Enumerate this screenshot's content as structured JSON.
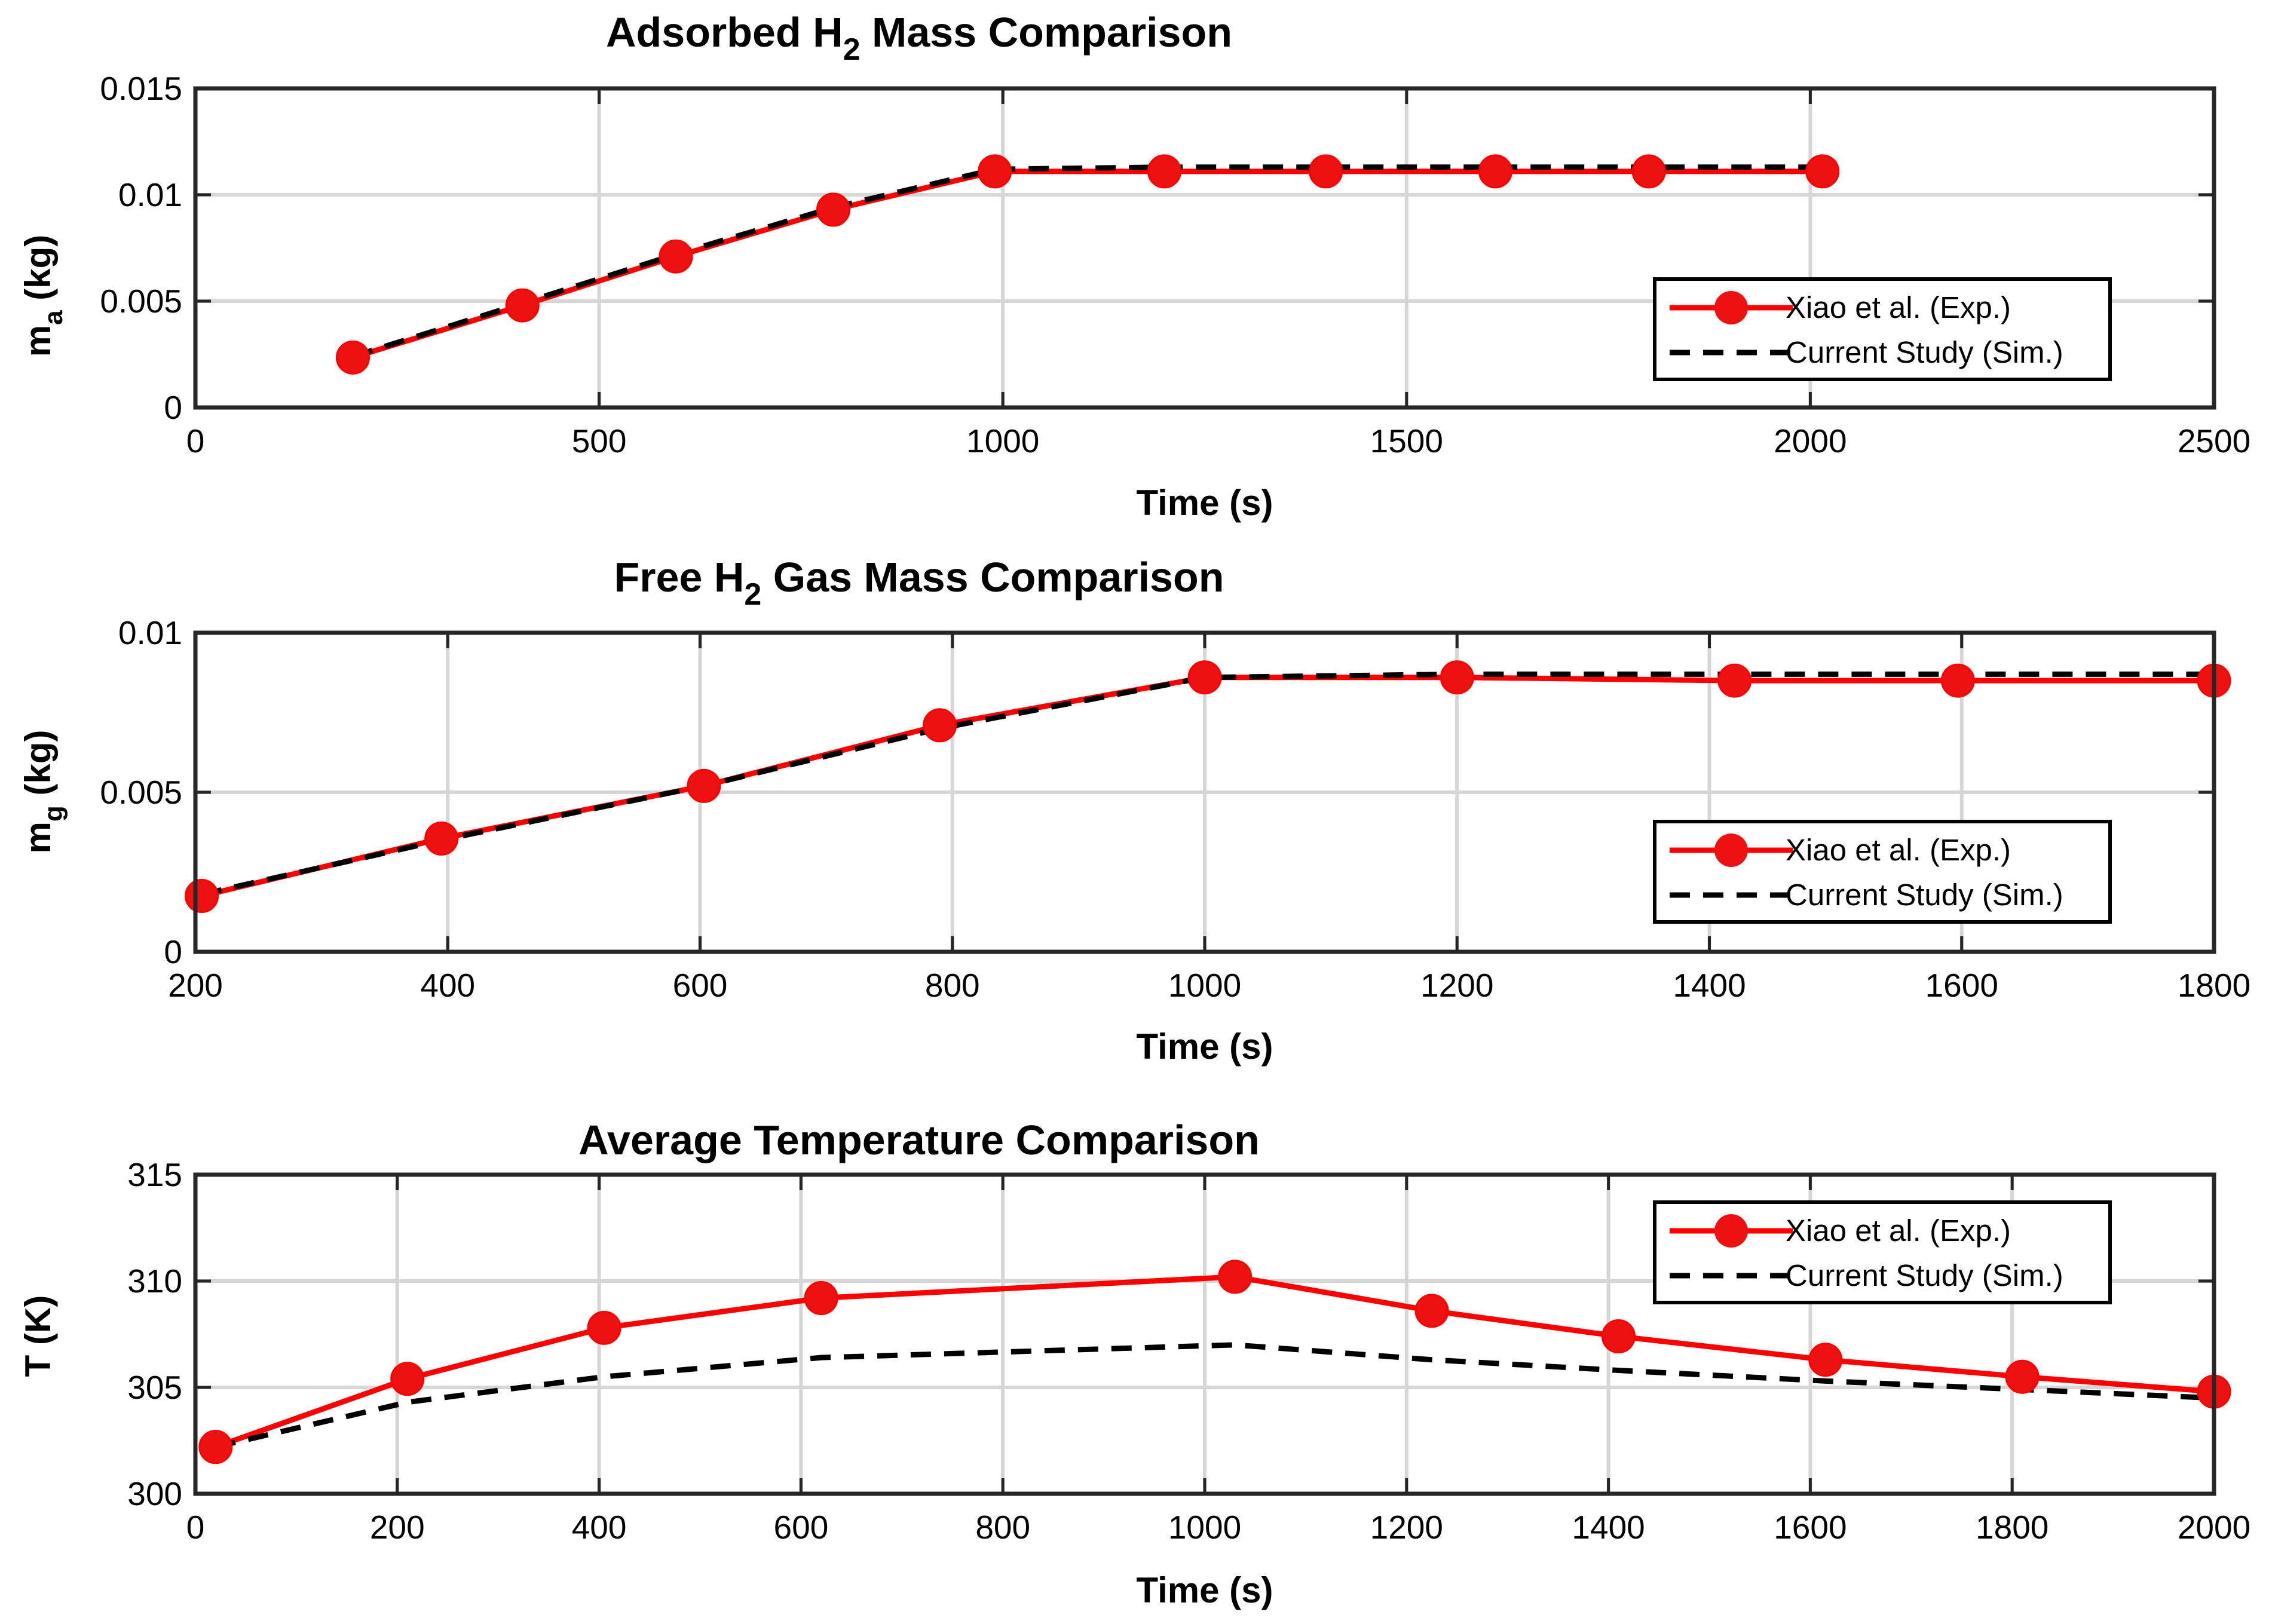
{
  "legend": {
    "exp_label": "Xiao et al. (Exp.)",
    "sim_label": "Current Study (Sim.)"
  },
  "colors": {
    "exp": "#ff0000",
    "marker": "#ee1111",
    "sim": "#000000"
  },
  "chart_data": [
    {
      "type": "line",
      "title": "Adsorbed H2 Mass Comparison",
      "title_main": "Adsorbed H",
      "title_sub": "2",
      "title_rest": " Mass Comparison",
      "xlabel": "Time (s)",
      "ylabel_main": "m",
      "ylabel_sub": "a",
      "ylabel_rest": " (kg)",
      "xlim": [
        0,
        2500
      ],
      "ylim": [
        0,
        0.015
      ],
      "xticks": [
        0,
        500,
        1000,
        1500,
        2000,
        2500
      ],
      "xtick_labels": [
        "0",
        "500",
        "1000",
        "1500",
        "2000",
        "2500"
      ],
      "yticks": [
        0,
        0.005,
        0.01,
        0.015
      ],
      "ytick_labels": [
        "0",
        "0.005",
        "0.01",
        "0.015"
      ],
      "grid": true,
      "legend_position": "bottom-right",
      "series": [
        {
          "name": "Xiao et al. (Exp.)",
          "x": [
            195,
            405,
            595,
            790,
            990,
            1200,
            1400,
            1610,
            1800,
            2015
          ],
          "y": [
            0.00235,
            0.0048,
            0.0071,
            0.0093,
            0.0111,
            0.0111,
            0.0111,
            0.0111,
            0.0111,
            0.0111
          ]
        },
        {
          "name": "Current Study (Sim.)",
          "x": [
            195,
            405,
            595,
            790,
            990,
            1200,
            1400,
            1610,
            1800,
            2015
          ],
          "y": [
            0.0024,
            0.0049,
            0.0072,
            0.0094,
            0.0112,
            0.0113,
            0.0113,
            0.0113,
            0.0113,
            0.0113
          ]
        }
      ]
    },
    {
      "type": "line",
      "title": "Free H2 Gas Mass Comparison",
      "title_main": "Free H",
      "title_sub": "2",
      "title_rest": " Gas Mass Comparison",
      "xlabel": "Time (s)",
      "ylabel_main": "m",
      "ylabel_sub": "g",
      "ylabel_rest": " (kg)",
      "xlim": [
        200,
        1800
      ],
      "ylim": [
        0,
        0.01
      ],
      "xticks": [
        200,
        400,
        600,
        800,
        1000,
        1200,
        1400,
        1600,
        1800
      ],
      "xtick_labels": [
        "200",
        "400",
        "600",
        "800",
        "1000",
        "1200",
        "1400",
        "1600",
        "1800"
      ],
      "yticks": [
        0,
        0.005,
        0.01
      ],
      "ytick_labels": [
        "0",
        "0.005",
        "0.01"
      ],
      "grid": true,
      "legend_position": "bottom-right",
      "series": [
        {
          "name": "Xiao et al. (Exp.)",
          "x": [
            205,
            395,
            603,
            790,
            1000,
            1200,
            1420,
            1597,
            1800
          ],
          "y": [
            0.00175,
            0.00355,
            0.0052,
            0.0071,
            0.0086,
            0.0086,
            0.0085,
            0.0085,
            0.0085
          ]
        },
        {
          "name": "Current Study (Sim.)",
          "x": [
            205,
            395,
            603,
            790,
            1000,
            1200,
            1420,
            1597,
            1800
          ],
          "y": [
            0.0018,
            0.0035,
            0.0052,
            0.007,
            0.0086,
            0.0087,
            0.0087,
            0.0087,
            0.0087
          ]
        }
      ]
    },
    {
      "type": "line",
      "title": "Average Temperature Comparison",
      "title_main": "Average Temperature Comparison",
      "title_sub": "",
      "title_rest": "",
      "xlabel": "Time (s)",
      "ylabel_main": "T (K)",
      "ylabel_sub": "",
      "ylabel_rest": "",
      "xlim": [
        0,
        2000
      ],
      "ylim": [
        300,
        315
      ],
      "xticks": [
        0,
        200,
        400,
        600,
        800,
        1000,
        1200,
        1400,
        1600,
        1800,
        2000
      ],
      "xtick_labels": [
        "0",
        "200",
        "400",
        "600",
        "800",
        "1000",
        "1200",
        "1400",
        "1600",
        "1800",
        "2000"
      ],
      "yticks": [
        300,
        305,
        310,
        315
      ],
      "ytick_labels": [
        "300",
        "305",
        "310",
        "315"
      ],
      "grid": true,
      "legend_position": "top-right",
      "series": [
        {
          "name": "Xiao et al. (Exp.)",
          "x": [
            20,
            210,
            405,
            620,
            1030,
            1225,
            1410,
            1615,
            1810,
            2000
          ],
          "y": [
            302.2,
            305.4,
            307.8,
            309.2,
            310.2,
            308.6,
            307.4,
            306.3,
            305.5,
            304.8
          ]
        },
        {
          "name": "Current Study (Sim.)",
          "x": [
            20,
            210,
            405,
            620,
            1030,
            1225,
            1410,
            1615,
            1810,
            2000
          ],
          "y": [
            302.2,
            304.3,
            305.5,
            306.4,
            307.0,
            306.3,
            305.8,
            305.3,
            304.9,
            304.5
          ]
        }
      ]
    }
  ]
}
